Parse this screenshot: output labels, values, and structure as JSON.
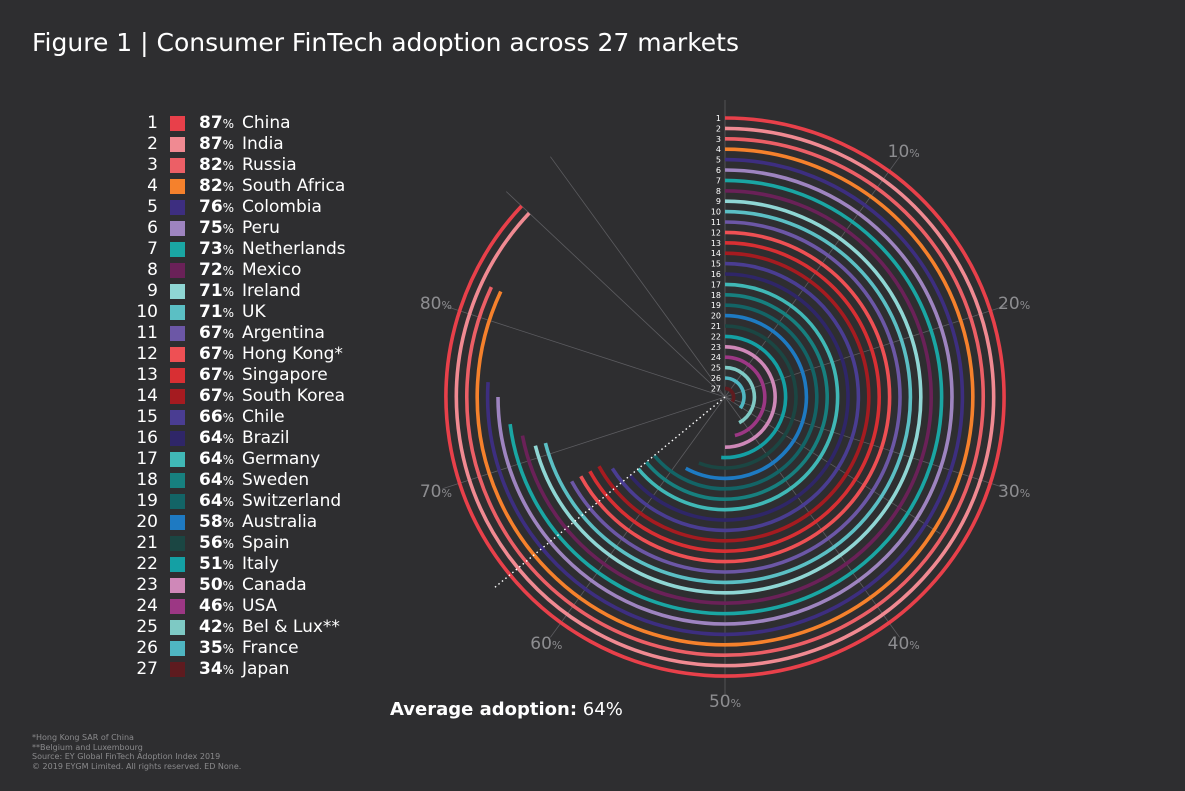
{
  "title": "Figure 1 | Consumer FinTech adoption across 27 markets",
  "average": {
    "label": "Average adoption:",
    "value": "64%"
  },
  "notes": [
    "*Hong Kong SAR of China",
    "**Belgium and Luxembourg",
    "Source: EY Global FinTech Adoption Index 2019",
    "© 2019 EYGM Limited. All rights reserved. ED None."
  ],
  "colors": {
    "background": "#2e2e30",
    "axis": "#5c5c60",
    "tick_label": "#8d8d90"
  },
  "chart_data": {
    "type": "radial-bar",
    "title": "Figure 1 | Consumer FinTech adoption across 27 markets",
    "unit": "%",
    "ticks": [
      10,
      20,
      30,
      40,
      50,
      60,
      70,
      80
    ],
    "average": 64,
    "series": [
      {
        "rank": 1,
        "name": "China",
        "value": 87,
        "color": "#e8404a"
      },
      {
        "rank": 2,
        "name": "India",
        "value": 87,
        "color": "#f08a92"
      },
      {
        "rank": 3,
        "name": "Russia",
        "value": 82,
        "color": "#ec5f66"
      },
      {
        "rank": 4,
        "name": "South Africa",
        "value": 82,
        "color": "#f5812c"
      },
      {
        "rank": 5,
        "name": "Colombia",
        "value": 76,
        "color": "#3d2e80"
      },
      {
        "rank": 6,
        "name": "Peru",
        "value": 75,
        "color": "#9e84c0"
      },
      {
        "rank": 7,
        "name": "Netherlands",
        "value": 73,
        "color": "#1aa6a3"
      },
      {
        "rank": 8,
        "name": "Mexico",
        "value": 72,
        "color": "#6a2158"
      },
      {
        "rank": 9,
        "name": "Ireland",
        "value": 71,
        "color": "#8fd6d4"
      },
      {
        "rank": 10,
        "name": "UK",
        "value": 71,
        "color": "#5bbfc4"
      },
      {
        "rank": 11,
        "name": "Argentina",
        "value": 67,
        "color": "#6c57a6"
      },
      {
        "rank": 12,
        "name": "Hong Kong*",
        "value": 67,
        "color": "#ee5054"
      },
      {
        "rank": 13,
        "name": "Singapore",
        "value": 67,
        "color": "#d82f33"
      },
      {
        "rank": 14,
        "name": "South Korea",
        "value": 67,
        "color": "#a51b20"
      },
      {
        "rank": 15,
        "name": "Chile",
        "value": 66,
        "color": "#4a3d92"
      },
      {
        "rank": 16,
        "name": "Brazil",
        "value": 64,
        "color": "#2f2668"
      },
      {
        "rank": 17,
        "name": "Germany",
        "value": 64,
        "color": "#40b8b6"
      },
      {
        "rank": 18,
        "name": "Sweden",
        "value": 64,
        "color": "#17807f"
      },
      {
        "rank": 19,
        "name": "Switzerland",
        "value": 64,
        "color": "#136466"
      },
      {
        "rank": 20,
        "name": "Australia",
        "value": 58,
        "color": "#1e7ac2"
      },
      {
        "rank": 21,
        "name": "Spain",
        "value": 56,
        "color": "#1b4643"
      },
      {
        "rank": 22,
        "name": "Italy",
        "value": 51,
        "color": "#14a0a4"
      },
      {
        "rank": 23,
        "name": "Canada",
        "value": 50,
        "color": "#cf88b8"
      },
      {
        "rank": 24,
        "name": "USA",
        "value": 46,
        "color": "#9c3784"
      },
      {
        "rank": 25,
        "name": "Bel & Lux**",
        "value": 42,
        "color": "#7ec9c4"
      },
      {
        "rank": 26,
        "name": "France",
        "value": 35,
        "color": "#4fb6c2"
      },
      {
        "rank": 27,
        "name": "Japan",
        "value": 34,
        "color": "#5e1b1f"
      }
    ]
  }
}
